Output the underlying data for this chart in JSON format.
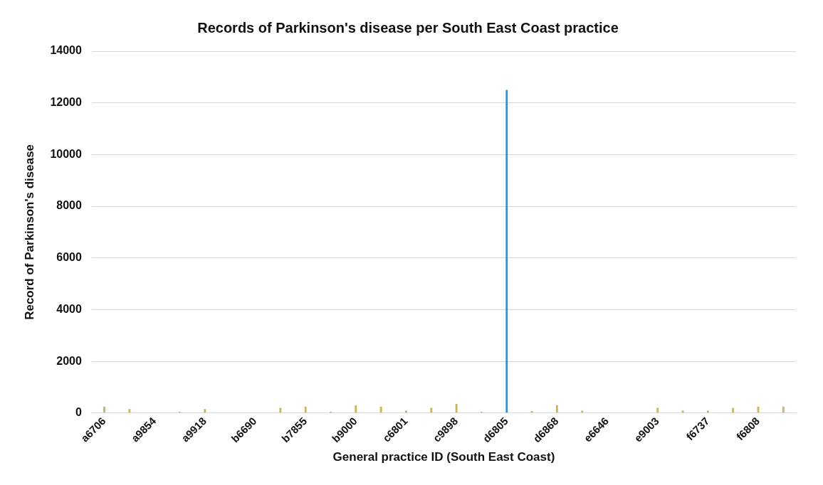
{
  "chart_data": {
    "type": "bar",
    "title": "Records of Parkinson's disease per South East Coast practice",
    "xlabel": "General practice ID (South East Coast)",
    "ylabel": "Record of Parkinson's disease",
    "categories": [
      "a6706",
      null,
      "a9854",
      null,
      "a9918",
      null,
      "b6690",
      null,
      "b7855",
      null,
      "b9000",
      null,
      "c6801",
      null,
      "c9898",
      null,
      "d6805",
      null,
      "d6868",
      null,
      "e6646",
      null,
      "e9003",
      null,
      "f6737",
      null,
      "f6808",
      null
    ],
    "values": [
      250,
      150,
      0,
      50,
      150,
      0,
      0,
      200,
      250,
      50,
      300,
      250,
      100,
      200,
      350,
      50,
      12500,
      80,
      300,
      100,
      0,
      0,
      200,
      100,
      100,
      200,
      250,
      250
    ],
    "colors": [
      "#c8b45a",
      "#c8b45a",
      "#c8b45a",
      "#c8b45a",
      "#c8b45a",
      "#c8b45a",
      "#c8b45a",
      "#c8b45a",
      "#c8b45a",
      "#c8b45a",
      "#c8b45a",
      "#c8b45a",
      "#c8b45a",
      "#c8b45a",
      "#c8b45a",
      "#c8b45a",
      "#3a8fc4",
      "#c8b45a",
      "#c8b45a",
      "#c8b45a",
      "#c8b45a",
      "#c8b45a",
      "#c8b45a",
      "#c8b45a",
      "#c8b45a",
      "#c8b45a",
      "#c8b45a",
      "#c8b45a"
    ],
    "ylim": [
      0,
      14000
    ],
    "yticks": [
      0,
      2000,
      4000,
      6000,
      8000,
      10000,
      12000,
      14000
    ],
    "grid": "y",
    "legend": false
  }
}
